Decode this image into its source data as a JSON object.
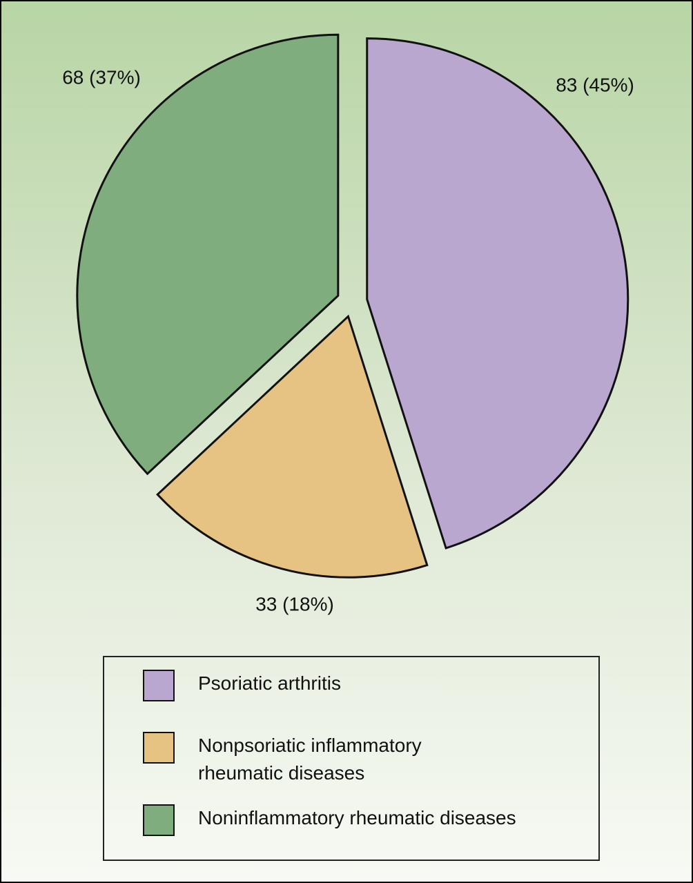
{
  "chart_data": {
    "type": "pie",
    "categories": [
      "Psoriatic arthritis",
      "Nonpsoriatic inflammatory rheumatic diseases",
      "Noninflammatory rheumatic diseases"
    ],
    "values": [
      83,
      33,
      68
    ],
    "value_labels": [
      "83 (45%)",
      "33 (18%)",
      "68 (37%)"
    ],
    "colors": [
      "#b9a7d0",
      "#e6c283",
      "#80ad7d"
    ],
    "legend": "bottom"
  }
}
